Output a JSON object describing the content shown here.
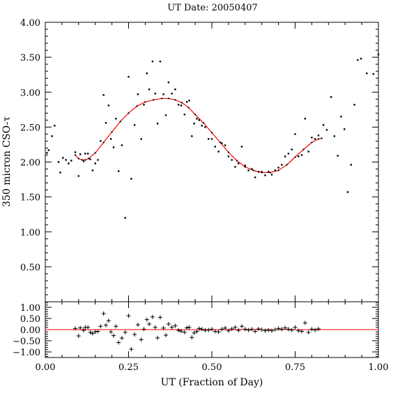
{
  "chart_data": [
    {
      "type": "scatter",
      "title": "UT Date: 20050407",
      "xlabel": "",
      "ylabel": "350 micron CSO-τ",
      "xlim": [
        0.0,
        1.0
      ],
      "ylim": [
        0.0,
        4.0
      ],
      "x_ticks": [
        "0.00",
        "0.25",
        "0.50",
        "0.75",
        "1.00"
      ],
      "y_ticks": [
        "0.50",
        "1.00",
        "1.50",
        "2.00",
        "2.50",
        "3.00",
        "3.50",
        "4.00"
      ],
      "grid": false,
      "colors": {
        "data": "#000000",
        "fit": "#ff0000"
      },
      "series": [
        {
          "name": "",
          "marker": "dot",
          "points": [
            [
              0.005,
              2.13
            ],
            [
              0.01,
              2.17
            ],
            [
              0.02,
              2.37
            ],
            [
              0.028,
              2.52
            ],
            [
              0.04,
              2.0
            ],
            [
              0.045,
              1.85
            ],
            [
              0.053,
              2.06
            ],
            [
              0.062,
              2.03
            ],
            [
              0.07,
              1.98
            ],
            [
              0.078,
              2.02
            ],
            [
              0.09,
              2.14
            ],
            [
              0.1,
              1.8
            ],
            [
              0.105,
              2.11
            ],
            [
              0.115,
              2.01
            ],
            [
              0.12,
              2.12
            ],
            [
              0.128,
              2.12
            ],
            [
              0.135,
              2.04
            ],
            [
              0.142,
              1.88
            ],
            [
              0.15,
              1.98
            ],
            [
              0.158,
              2.03
            ],
            [
              0.166,
              2.3
            ],
            [
              0.175,
              2.96
            ],
            [
              0.182,
              2.56
            ],
            [
              0.19,
              2.81
            ],
            [
              0.197,
              2.33
            ],
            [
              0.205,
              2.21
            ],
            [
              0.212,
              2.62
            ],
            [
              0.22,
              1.87
            ],
            [
              0.23,
              2.24
            ],
            [
              0.24,
              1.2
            ],
            [
              0.25,
              3.22
            ],
            [
              0.258,
              1.76
            ],
            [
              0.268,
              2.53
            ],
            [
              0.278,
              2.97
            ],
            [
              0.288,
              2.33
            ],
            [
              0.296,
              2.82
            ],
            [
              0.305,
              3.27
            ],
            [
              0.312,
              3.04
            ],
            [
              0.322,
              3.44
            ],
            [
              0.33,
              2.98
            ],
            [
              0.337,
              2.55
            ],
            [
              0.345,
              3.44
            ],
            [
              0.355,
              2.97
            ],
            [
              0.362,
              2.67
            ],
            [
              0.37,
              3.14
            ],
            [
              0.38,
              2.98
            ],
            [
              0.39,
              3.04
            ],
            [
              0.4,
              2.82
            ],
            [
              0.408,
              2.81
            ],
            [
              0.418,
              2.68
            ],
            [
              0.425,
              2.86
            ],
            [
              0.432,
              2.88
            ],
            [
              0.44,
              2.37
            ],
            [
              0.447,
              2.55
            ],
            [
              0.455,
              2.62
            ],
            [
              0.462,
              2.6
            ],
            [
              0.47,
              2.52
            ],
            [
              0.48,
              2.5
            ],
            [
              0.49,
              2.33
            ],
            [
              0.5,
              2.33
            ],
            [
              0.51,
              2.22
            ],
            [
              0.52,
              2.15
            ],
            [
              0.53,
              2.27
            ],
            [
              0.54,
              2.24
            ],
            [
              0.55,
              2.08
            ],
            [
              0.56,
              2.03
            ],
            [
              0.57,
              1.93
            ],
            [
              0.58,
              1.98
            ],
            [
              0.59,
              2.22
            ],
            [
              0.6,
              1.95
            ],
            [
              0.61,
              1.88
            ],
            [
              0.62,
              1.9
            ],
            [
              0.63,
              1.78
            ],
            [
              0.64,
              1.86
            ],
            [
              0.65,
              1.86
            ],
            [
              0.66,
              1.81
            ],
            [
              0.67,
              1.86
            ],
            [
              0.68,
              1.82
            ],
            [
              0.69,
              1.88
            ],
            [
              0.7,
              1.92
            ],
            [
              0.71,
              1.96
            ],
            [
              0.72,
              2.08
            ],
            [
              0.73,
              2.12
            ],
            [
              0.74,
              2.18
            ],
            [
              0.75,
              2.4
            ],
            [
              0.76,
              2.08
            ],
            [
              0.77,
              2.1
            ],
            [
              0.78,
              2.62
            ],
            [
              0.79,
              2.15
            ],
            [
              0.8,
              2.35
            ],
            [
              0.81,
              2.33
            ],
            [
              0.82,
              2.38
            ],
            [
              0.835,
              2.53
            ],
            [
              0.845,
              2.46
            ],
            [
              0.858,
              2.93
            ],
            [
              0.868,
              2.37
            ],
            [
              0.878,
              2.09
            ],
            [
              0.888,
              2.65
            ],
            [
              0.898,
              2.47
            ],
            [
              0.908,
              1.57
            ],
            [
              0.918,
              1.96
            ],
            [
              0.928,
              2.82
            ],
            [
              0.938,
              3.46
            ],
            [
              0.948,
              3.48
            ],
            [
              0.965,
              3.27
            ],
            [
              0.985,
              3.26
            ],
            [
              1.0,
              3.54
            ]
          ]
        },
        {
          "name": "",
          "marker": "line",
          "points": [
            [
              0.09,
              2.1
            ],
            [
              0.1,
              2.05
            ],
            [
              0.11,
              2.03
            ],
            [
              0.12,
              2.03
            ],
            [
              0.13,
              2.05
            ],
            [
              0.15,
              2.13
            ],
            [
              0.175,
              2.28
            ],
            [
              0.2,
              2.43
            ],
            [
              0.225,
              2.58
            ],
            [
              0.25,
              2.7
            ],
            [
              0.275,
              2.8
            ],
            [
              0.3,
              2.86
            ],
            [
              0.325,
              2.89
            ],
            [
              0.35,
              2.91
            ],
            [
              0.37,
              2.91
            ],
            [
              0.39,
              2.89
            ],
            [
              0.41,
              2.85
            ],
            [
              0.43,
              2.78
            ],
            [
              0.45,
              2.68
            ],
            [
              0.475,
              2.56
            ],
            [
              0.5,
              2.42
            ],
            [
              0.525,
              2.28
            ],
            [
              0.55,
              2.14
            ],
            [
              0.575,
              2.02
            ],
            [
              0.6,
              1.93
            ],
            [
              0.625,
              1.88
            ],
            [
              0.65,
              1.85
            ],
            [
              0.675,
              1.85
            ],
            [
              0.7,
              1.88
            ],
            [
              0.725,
              1.96
            ],
            [
              0.75,
              2.07
            ],
            [
              0.775,
              2.18
            ],
            [
              0.8,
              2.28
            ],
            [
              0.82,
              2.33
            ],
            [
              0.83,
              2.34
            ]
          ]
        }
      ]
    },
    {
      "type": "scatter",
      "title": "",
      "xlabel": "UT (Fraction of Day)",
      "ylabel": "",
      "xlim": [
        0.0,
        1.0
      ],
      "ylim": [
        -1.25,
        1.25
      ],
      "x_ticks": [
        "0.00",
        "0.25",
        "0.50",
        "0.75",
        "1.00"
      ],
      "y_ticks": [
        "1.00",
        "0.50",
        "0.00",
        "−0.50",
        "−1.00"
      ],
      "grid": false,
      "colors": {
        "data": "#000000",
        "zero_line": "#ff0000"
      },
      "zero_line": 0.0,
      "series": [
        {
          "name": "",
          "marker": "plus",
          "points": [
            [
              0.09,
              0.05
            ],
            [
              0.1,
              -0.28
            ],
            [
              0.105,
              0.08
            ],
            [
              0.115,
              -0.03
            ],
            [
              0.12,
              0.1
            ],
            [
              0.128,
              0.1
            ],
            [
              0.135,
              -0.12
            ],
            [
              0.142,
              -0.17
            ],
            [
              0.15,
              -0.1
            ],
            [
              0.158,
              -0.08
            ],
            [
              0.166,
              0.15
            ],
            [
              0.175,
              0.72
            ],
            [
              0.182,
              0.2
            ],
            [
              0.19,
              0.4
            ],
            [
              0.197,
              -0.1
            ],
            [
              0.205,
              -0.27
            ],
            [
              0.212,
              0.15
            ],
            [
              0.22,
              -0.58
            ],
            [
              0.23,
              -0.38
            ],
            [
              0.24,
              -0.12
            ],
            [
              0.25,
              0.62
            ],
            [
              0.258,
              -0.88
            ],
            [
              0.268,
              -0.22
            ],
            [
              0.278,
              0.22
            ],
            [
              0.288,
              -0.45
            ],
            [
              0.296,
              0.02
            ],
            [
              0.305,
              0.45
            ],
            [
              0.312,
              0.25
            ],
            [
              0.322,
              0.57
            ],
            [
              0.33,
              0.1
            ],
            [
              0.337,
              -0.37
            ],
            [
              0.345,
              0.55
            ],
            [
              0.355,
              0.07
            ],
            [
              0.362,
              -0.25
            ],
            [
              0.37,
              0.25
            ],
            [
              0.38,
              0.1
            ],
            [
              0.39,
              0.17
            ],
            [
              0.4,
              -0.03
            ],
            [
              0.408,
              -0.07
            ],
            [
              0.418,
              -0.12
            ],
            [
              0.425,
              0.08
            ],
            [
              0.432,
              0.1
            ],
            [
              0.44,
              -0.35
            ],
            [
              0.447,
              -0.15
            ],
            [
              0.455,
              -0.08
            ],
            [
              0.462,
              0.05
            ],
            [
              0.47,
              0.02
            ],
            [
              0.48,
              -0.03
            ],
            [
              0.49,
              -0.02
            ],
            [
              0.5,
              0.02
            ],
            [
              0.51,
              -0.08
            ],
            [
              0.52,
              -0.1
            ],
            [
              0.53,
              0.02
            ],
            [
              0.54,
              0.07
            ],
            [
              0.55,
              -0.05
            ],
            [
              0.56,
              0.03
            ],
            [
              0.57,
              0.1
            ],
            [
              0.58,
              -0.03
            ],
            [
              0.59,
              0.15
            ],
            [
              0.6,
              0.02
            ],
            [
              0.61,
              -0.02
            ],
            [
              0.62,
              0.02
            ],
            [
              0.63,
              -0.08
            ],
            [
              0.64,
              0.03
            ],
            [
              0.65,
              0.0
            ],
            [
              0.66,
              -0.05
            ],
            [
              0.67,
              -0.02
            ],
            [
              0.68,
              -0.05
            ],
            [
              0.69,
              0.0
            ],
            [
              0.7,
              0.05
            ],
            [
              0.71,
              0.02
            ],
            [
              0.72,
              0.08
            ],
            [
              0.73,
              0.02
            ],
            [
              0.74,
              -0.02
            ],
            [
              0.75,
              0.1
            ],
            [
              0.76,
              -0.05
            ],
            [
              0.77,
              -0.08
            ],
            [
              0.78,
              0.3
            ],
            [
              0.79,
              -0.12
            ],
            [
              0.8,
              0.02
            ],
            [
              0.81,
              -0.02
            ],
            [
              0.82,
              0.03
            ]
          ]
        }
      ]
    }
  ]
}
